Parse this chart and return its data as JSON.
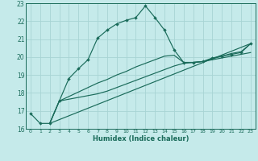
{
  "xlabel": "Humidex (Indice chaleur)",
  "xlim": [
    -0.5,
    23.5
  ],
  "ylim": [
    16,
    23
  ],
  "yticks": [
    16,
    17,
    18,
    19,
    20,
    21,
    22,
    23
  ],
  "xticks": [
    0,
    1,
    2,
    3,
    4,
    5,
    6,
    7,
    8,
    9,
    10,
    11,
    12,
    13,
    14,
    15,
    16,
    17,
    18,
    19,
    20,
    21,
    22,
    23
  ],
  "bg_color": "#c5eaea",
  "grid_color": "#a8d4d4",
  "line_color": "#1a6b5a",
  "line1_x": [
    0,
    1,
    2,
    3,
    4,
    5,
    6,
    7,
    8,
    9,
    10,
    11,
    12,
    13,
    14,
    15,
    16,
    17,
    18,
    19,
    20,
    21,
    22,
    23
  ],
  "line1_y": [
    16.85,
    16.3,
    16.3,
    17.55,
    18.8,
    19.35,
    19.85,
    21.05,
    21.5,
    21.85,
    22.05,
    22.2,
    22.85,
    22.2,
    21.5,
    20.4,
    19.7,
    19.7,
    19.75,
    19.95,
    20.05,
    20.15,
    20.25,
    20.75
  ],
  "line2_x": [
    2,
    3,
    4,
    5,
    6,
    7,
    8,
    9,
    10,
    11,
    12,
    13,
    14,
    15,
    16,
    17,
    18,
    19,
    20,
    21,
    22,
    23
  ],
  "line2_y": [
    16.3,
    17.55,
    17.65,
    17.75,
    17.85,
    17.95,
    18.1,
    18.3,
    18.5,
    18.7,
    18.9,
    19.1,
    19.3,
    19.5,
    19.65,
    19.7,
    19.75,
    19.85,
    19.95,
    20.05,
    20.15,
    20.25
  ],
  "line3_x": [
    2,
    3,
    4,
    5,
    6,
    7,
    8,
    9,
    10,
    11,
    12,
    13,
    14,
    15,
    16,
    17,
    18,
    19,
    20,
    21,
    22,
    23
  ],
  "line3_y": [
    16.3,
    17.55,
    17.8,
    18.05,
    18.3,
    18.55,
    18.75,
    19.0,
    19.2,
    19.45,
    19.65,
    19.85,
    20.05,
    20.1,
    19.7,
    19.7,
    19.75,
    19.9,
    20.05,
    20.2,
    20.3,
    20.75
  ],
  "line4_x": [
    2,
    23
  ],
  "line4_y": [
    16.3,
    20.75
  ]
}
